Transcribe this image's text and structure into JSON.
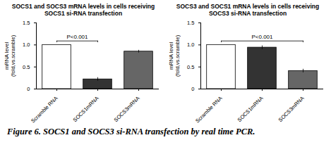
{
  "chart_data": [
    {
      "type": "bar",
      "title": "SOCS1 and SOCS3 mRNA levels in cells receiving SOCS1 si-RNA transfection",
      "ylabel": "mRNA level (fold,vs.scramble)",
      "categories": [
        "Scramble RNA",
        "SOCS1mRNA",
        "SOCS3mRNA"
      ],
      "values": [
        1.0,
        0.22,
        0.85
      ],
      "errors": [
        0,
        0.04,
        0.03
      ],
      "colors": [
        "#ffffff",
        "#333333",
        "#666666"
      ],
      "ylim": [
        0,
        1.5
      ],
      "yticks": [
        0,
        0.5,
        {
          "value": 1,
          "label": "1.0"
        },
        1.5
      ],
      "annotations": [
        {
          "text": "P<0.001",
          "from": "Scramble RNA",
          "to": "SOCS1mRNA"
        }
      ]
    },
    {
      "type": "bar",
      "title": "SOCS3 and SOCS1 mRNA levels in cells receiving SOCS3 si-RNA transfection",
      "ylabel": "mRNA level (fold,vs.scramble)",
      "categories": [
        "Scramble RNA",
        "SOCS1mRNA",
        "SOCS3mRNA"
      ],
      "values": [
        1.0,
        0.94,
        0.41
      ],
      "errors": [
        0,
        0.04,
        0.04
      ],
      "colors": [
        "#ffffff",
        "#333333",
        "#666666"
      ],
      "ylim": [
        0,
        1.5
      ],
      "yticks": [
        0,
        0.5,
        {
          "value": 1,
          "label": "1.0"
        },
        1.5
      ],
      "annotations": [
        {
          "text": "P<0.001",
          "from": "Scramble RNA",
          "to": "SOCS3mRNA"
        }
      ]
    }
  ],
  "caption": "Figure 6. SOCS1 and SOCS3 si-RNA transfection by real time PCR."
}
